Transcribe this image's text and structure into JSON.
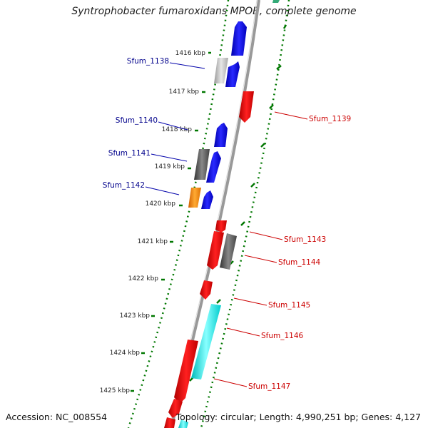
{
  "title": "Syntrophobacter fumaroxidans MPOB, complete genome",
  "footer": {
    "accession": "Accession: NC_008554",
    "topology": "Topology: circular; Length: 4,990,251 bp; Genes: 4,127"
  },
  "kbp_ticks": [
    "1416 kbp",
    "1417 kbp",
    "1418 kbp",
    "1419 kbp",
    "1420 kbp",
    "1421 kbp",
    "1422 kbp",
    "1423 kbp",
    "1424 kbp",
    "1425 kbp"
  ],
  "gene_labels": {
    "left": [
      "Sfum_1138",
      "Sfum_1140",
      "Sfum_1141",
      "Sfum_1142"
    ],
    "right": [
      "Sfum_1139",
      "Sfum_1143",
      "Sfum_1144",
      "Sfum_1145",
      "Sfum_1146",
      "Sfum_1147"
    ]
  },
  "colors": {
    "forward_label": "#00008b",
    "reverse_label": "#cc0000",
    "blue": "#0000ee",
    "red": "#ee0000",
    "grey": "#555555",
    "light_grey": "#bbbbbb",
    "orange": "#ff8800",
    "cyan": "#00eeee",
    "dotted_track": "#008800",
    "backbone": "#888888"
  }
}
